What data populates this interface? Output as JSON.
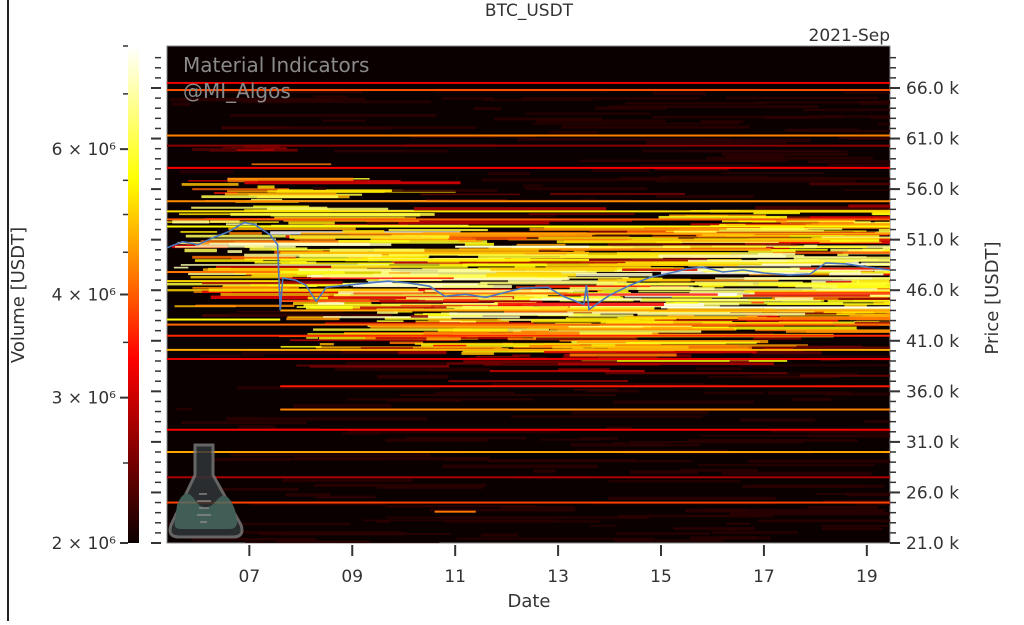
{
  "chart_data": {
    "type": "heatmap",
    "title": "BTC_USDT",
    "period_label": "2021-Sep",
    "xlabel": "Date",
    "ylabel": "Price [USDT]",
    "colorbar_label": "Volume [USDT]",
    "colormap": "hot",
    "colorbar_scale": "log",
    "colorbar_range": [
      2000000,
      8000000
    ],
    "colorbar_ticks": [
      {
        "value": 2000000,
        "label": "2 × 10⁶"
      },
      {
        "value": 3000000,
        "label": "3 × 10⁶"
      },
      {
        "value": 4000000,
        "label": "4 × 10⁶"
      },
      {
        "value": 6000000,
        "label": "6 × 10⁶"
      }
    ],
    "xlim": [
      5.4,
      19.45
    ],
    "x_ticks": [
      {
        "value": 7,
        "label": "07"
      },
      {
        "value": 9,
        "label": "09"
      },
      {
        "value": 11,
        "label": "11"
      },
      {
        "value": 13,
        "label": "13"
      },
      {
        "value": 15,
        "label": "15"
      },
      {
        "value": 17,
        "label": "17"
      },
      {
        "value": 19,
        "label": "19"
      }
    ],
    "ylim": [
      21000,
      69000
    ],
    "y_ticks": [
      {
        "value": 21000,
        "label": "21.0 k"
      },
      {
        "value": 26000,
        "label": "26.0 k"
      },
      {
        "value": 31000,
        "label": "31.0 k"
      },
      {
        "value": 36000,
        "label": "36.0 k"
      },
      {
        "value": 41000,
        "label": "41.0 k"
      },
      {
        "value": 46000,
        "label": "46.0 k"
      },
      {
        "value": 51000,
        "label": "51.0 k"
      },
      {
        "value": 56000,
        "label": "56.0 k"
      },
      {
        "value": 61000,
        "label": "61.0 k"
      },
      {
        "value": 66000,
        "label": "66.0 k"
      }
    ],
    "price_line": {
      "color": "#4a78c0",
      "points": [
        [
          5.4,
          50200
        ],
        [
          5.7,
          50800
        ],
        [
          6.0,
          50500
        ],
        [
          6.3,
          51200
        ],
        [
          6.6,
          51800
        ],
        [
          6.9,
          52700
        ],
        [
          7.1,
          52500
        ],
        [
          7.4,
          51500
        ],
        [
          7.55,
          50500
        ],
        [
          7.6,
          44000
        ],
        [
          7.65,
          47200
        ],
        [
          7.9,
          47000
        ],
        [
          8.1,
          46500
        ],
        [
          8.3,
          44900
        ],
        [
          8.5,
          46300
        ],
        [
          8.9,
          46500
        ],
        [
          9.3,
          46700
        ],
        [
          9.7,
          46900
        ],
        [
          10.1,
          46700
        ],
        [
          10.5,
          46400
        ],
        [
          10.8,
          45400
        ],
        [
          11.2,
          45600
        ],
        [
          11.6,
          45300
        ],
        [
          11.9,
          45700
        ],
        [
          12.3,
          46200
        ],
        [
          12.8,
          46300
        ],
        [
          13.1,
          45400
        ],
        [
          13.5,
          44600
        ],
        [
          13.55,
          46500
        ],
        [
          13.6,
          44100
        ],
        [
          14.0,
          45500
        ],
        [
          14.4,
          46500
        ],
        [
          14.8,
          47300
        ],
        [
          15.1,
          47600
        ],
        [
          15.5,
          48100
        ],
        [
          15.8,
          48300
        ],
        [
          16.2,
          47800
        ],
        [
          16.6,
          48000
        ],
        [
          17.0,
          47700
        ],
        [
          17.5,
          47500
        ],
        [
          17.9,
          47600
        ],
        [
          18.2,
          48700
        ],
        [
          18.6,
          48600
        ],
        [
          19.0,
          48300
        ],
        [
          19.45,
          48000
        ]
      ]
    },
    "liquidity_bands": [
      {
        "price": 66500,
        "from": 5.4,
        "to": 19.45,
        "volume": 3200000
      },
      {
        "price": 65800,
        "from": 5.4,
        "to": 19.45,
        "volume": 3900000
      },
      {
        "price": 61300,
        "from": 5.4,
        "to": 19.45,
        "volume": 4300000
      },
      {
        "price": 60300,
        "from": 5.4,
        "to": 19.45,
        "volume": 2600000
      },
      {
        "price": 58100,
        "from": 5.4,
        "to": 19.45,
        "volume": 3300000
      },
      {
        "price": 54800,
        "from": 5.4,
        "to": 19.45,
        "volume": 4400000
      },
      {
        "price": 53800,
        "from": 5.4,
        "to": 19.45,
        "volume": 5200000
      },
      {
        "price": 53000,
        "from": 5.4,
        "to": 19.45,
        "volume": 4000000
      },
      {
        "price": 52300,
        "from": 5.4,
        "to": 19.45,
        "volume": 5500000
      },
      {
        "price": 51600,
        "from": 8.0,
        "to": 19.45,
        "volume": 4600000
      },
      {
        "price": 50300,
        "from": 11.0,
        "to": 13.6,
        "volume": 7500000
      },
      {
        "price": 49700,
        "from": 7.6,
        "to": 13.6,
        "volume": 4800000
      },
      {
        "price": 49000,
        "from": 7.6,
        "to": 13.6,
        "volume": 5400000
      },
      {
        "price": 48500,
        "from": 13.6,
        "to": 16.5,
        "volume": 5000000
      },
      {
        "price": 47800,
        "from": 5.4,
        "to": 7.6,
        "volume": 4200000
      },
      {
        "price": 46900,
        "from": 5.4,
        "to": 7.6,
        "volume": 5100000
      },
      {
        "price": 44300,
        "from": 15.0,
        "to": 19.45,
        "volume": 7800000
      },
      {
        "price": 44000,
        "from": 7.6,
        "to": 19.45,
        "volume": 4600000
      },
      {
        "price": 43100,
        "from": 5.4,
        "to": 7.6,
        "volume": 5600000
      },
      {
        "price": 42600,
        "from": 5.4,
        "to": 19.45,
        "volume": 4100000
      },
      {
        "price": 41500,
        "from": 5.4,
        "to": 19.45,
        "volume": 3600000
      },
      {
        "price": 40100,
        "from": 5.4,
        "to": 19.45,
        "volume": 4700000
      },
      {
        "price": 39200,
        "from": 5.4,
        "to": 19.45,
        "volume": 3200000
      },
      {
        "price": 36500,
        "from": 7.6,
        "to": 19.45,
        "volume": 3500000
      },
      {
        "price": 34200,
        "from": 7.6,
        "to": 19.45,
        "volume": 4300000
      },
      {
        "price": 32200,
        "from": 5.4,
        "to": 19.45,
        "volume": 3300000
      },
      {
        "price": 30000,
        "from": 5.4,
        "to": 19.45,
        "volume": 4600000
      },
      {
        "price": 27500,
        "from": 5.4,
        "to": 19.45,
        "volume": 2800000
      },
      {
        "price": 25000,
        "from": 5.4,
        "to": 19.45,
        "volume": 3800000
      },
      {
        "price": 24100,
        "from": 10.6,
        "to": 11.4,
        "volume": 4200000
      }
    ]
  },
  "watermark": {
    "line1": "Material Indicators",
    "line2": "@MI_Algos",
    "logo_icon": "flask-icon"
  }
}
